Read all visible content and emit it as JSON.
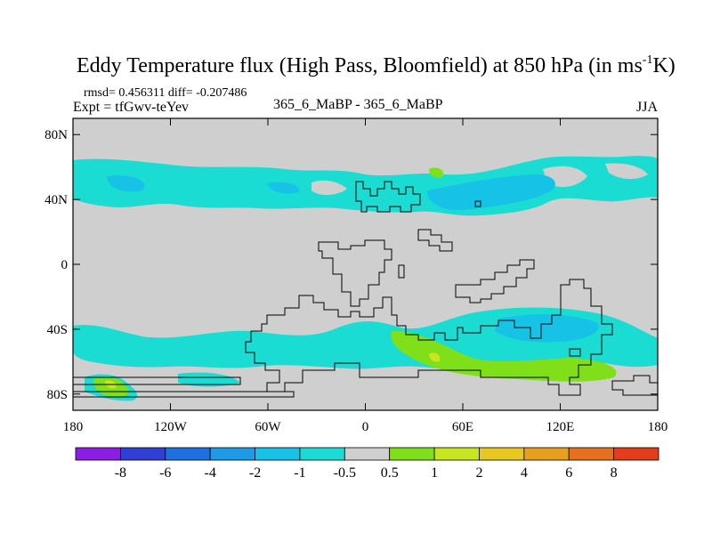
{
  "chart_data": {
    "type": "heatmap",
    "title_main": "Eddy Temperature flux (High Pass, Bloomfield) at 850 hPa (in ms",
    "title_sup": "-1",
    "title_end": "K)",
    "stats": "rmsd= 0.456311 diff= -0.207486",
    "expt": "Expt = tfGwv-teYev",
    "center_label": "365_6_MaBP - 365_6_MaBP",
    "season": "JJA",
    "x_ticks": [
      "180",
      "120W",
      "60W",
      "0",
      "60E",
      "120E",
      "180"
    ],
    "y_ticks": [
      "80N",
      "40N",
      "0",
      "40S",
      "80S"
    ],
    "xlim": [
      -180,
      180
    ],
    "ylim": [
      -90,
      90
    ],
    "colorbar": {
      "labels": [
        "-8",
        "-6",
        "-4",
        "-2",
        "-1",
        "-0.5",
        "0.5",
        "1",
        "2",
        "4",
        "6",
        "8"
      ],
      "colors": [
        "#8a1ee6",
        "#2f3fd8",
        "#1e6fe0",
        "#1f9ae6",
        "#16c3e6",
        "#1adcd2",
        "#cfcfcf",
        "#7fe01a",
        "#c8e61e",
        "#e6c81e",
        "#e6a01e",
        "#e6701e",
        "#e63c1e"
      ]
    },
    "field_colors": {
      "background": "#cfcfcf",
      "weak_negative": "#1adcd2",
      "moderate_negative": "#16c3e6",
      "weak_positive": "#7fe01a",
      "moderate_positive": "#c8e61e",
      "strong_positive": "#e6c81e"
    }
  }
}
